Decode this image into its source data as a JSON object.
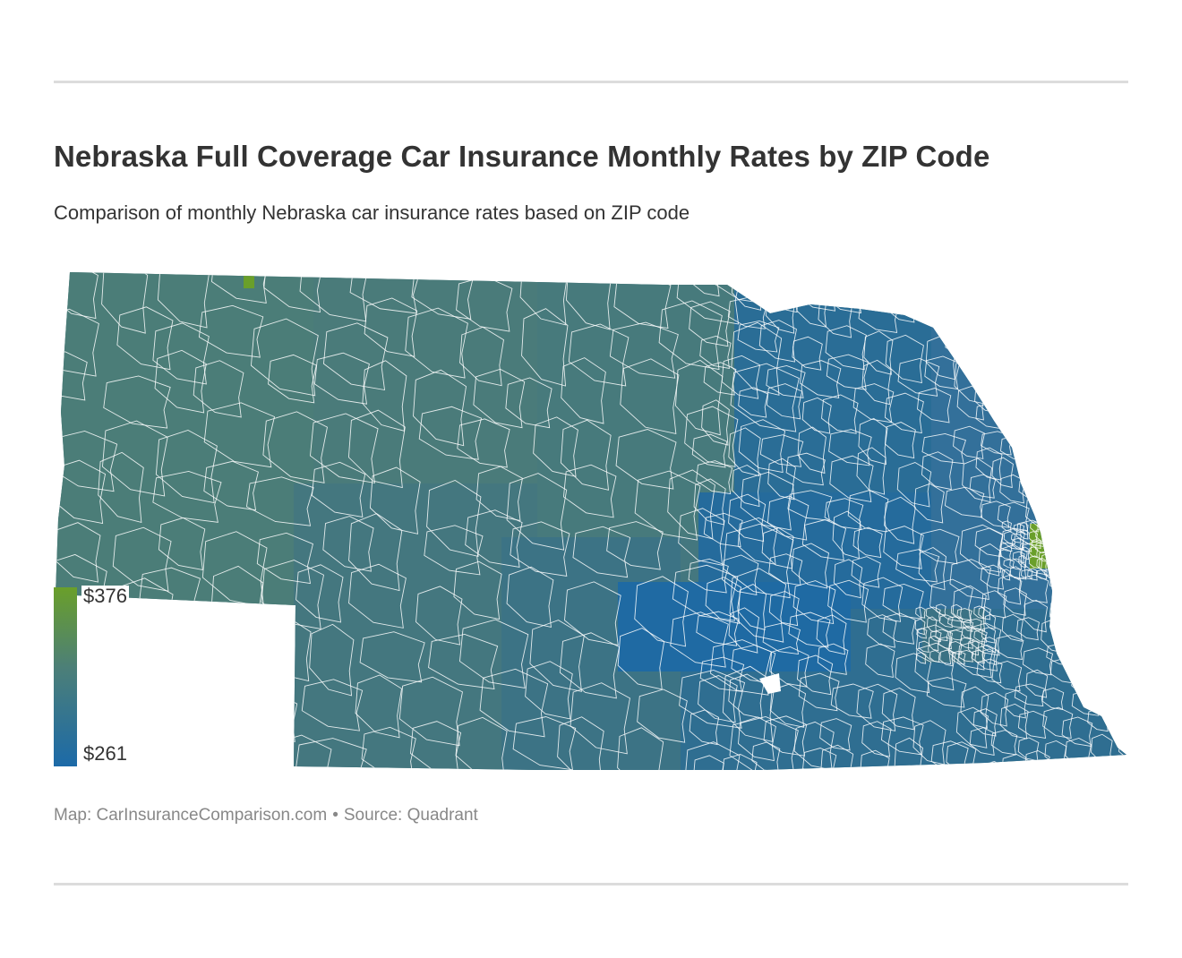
{
  "header": {
    "title": "Nebraska Full Coverage Car Insurance Monthly Rates by ZIP Code",
    "subtitle": "Comparison of monthly Nebraska car insurance rates based on ZIP code"
  },
  "legend": {
    "max_label": "$376",
    "min_label": "$261",
    "max_value": 376,
    "min_value": 261,
    "max_color": "#6a9f2a",
    "mid_color": "#4c7f78",
    "min_color": "#1c6aa8"
  },
  "map": {
    "region": "Nebraska",
    "boundary_color": "#ffffff",
    "regions": [
      {
        "name": "panhandle-west",
        "value": 300,
        "color": "#4b7d78"
      },
      {
        "name": "sandhills-north",
        "value": 298,
        "color": "#4a7b7a"
      },
      {
        "name": "sandhills-central",
        "value": 296,
        "color": "#477a7c"
      },
      {
        "name": "southwest",
        "value": 293,
        "color": "#44777f"
      },
      {
        "name": "south-central",
        "value": 285,
        "color": "#3c7385"
      },
      {
        "name": "northeast",
        "value": 272,
        "color": "#2a6d96"
      },
      {
        "name": "east-central",
        "value": 268,
        "color": "#256b9c"
      },
      {
        "name": "southeast",
        "value": 276,
        "color": "#2f6e91"
      },
      {
        "name": "grand-island-area",
        "value": 263,
        "color": "#1f6aa3"
      },
      {
        "name": "lincoln-area",
        "value": 288,
        "color": "#3b7284"
      },
      {
        "name": "omaha-area",
        "value": 376,
        "color": "#6a9f2a"
      }
    ]
  },
  "footer": {
    "map_credit": "Map: CarInsuranceComparison.com",
    "separator": "•",
    "source": "Source: Quadrant"
  }
}
